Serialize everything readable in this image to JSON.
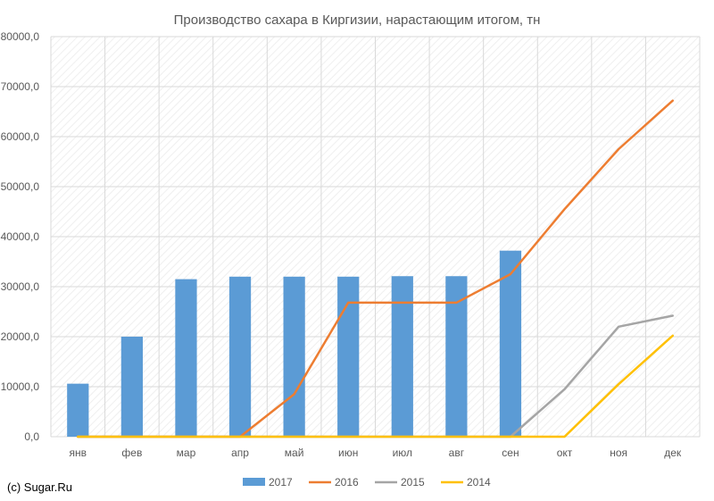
{
  "credit": "(c) Sugar.Ru",
  "chart_data": {
    "type": "bar",
    "title": "Производство сахара в Киргизии, нарастающим итогом, тн",
    "xlabel": "",
    "ylabel": "",
    "categories": [
      "янв",
      "фев",
      "мар",
      "апр",
      "май",
      "июн",
      "июл",
      "авг",
      "сен",
      "окт",
      "ноя",
      "дек"
    ],
    "ylim": [
      0,
      80000
    ],
    "yticks": [
      "0,0",
      "10000,0",
      "20000,0",
      "30000,0",
      "40000,0",
      "50000,0",
      "60000,0",
      "70000,0",
      "80000,0"
    ],
    "grid": true,
    "legend_position": "bottom",
    "series": [
      {
        "name": "2017",
        "kind": "bar",
        "color": "#5b9bd5",
        "values": [
          10600,
          20000,
          31500,
          32000,
          32000,
          32000,
          32100,
          32100,
          37200,
          null,
          null,
          null
        ]
      },
      {
        "name": "2016",
        "kind": "line",
        "color": "#ed7d31",
        "values": [
          0,
          0,
          0,
          0,
          8500,
          26800,
          26800,
          26800,
          32500,
          45500,
          57500,
          67200
        ]
      },
      {
        "name": "2015",
        "kind": "line",
        "color": "#a5a5a5",
        "values": [
          0,
          0,
          0,
          0,
          0,
          0,
          0,
          0,
          0,
          9500,
          22000,
          24200
        ]
      },
      {
        "name": "2014",
        "kind": "line",
        "color": "#ffc000",
        "values": [
          0,
          0,
          0,
          0,
          0,
          0,
          0,
          0,
          0,
          0,
          10500,
          20200
        ]
      }
    ]
  }
}
